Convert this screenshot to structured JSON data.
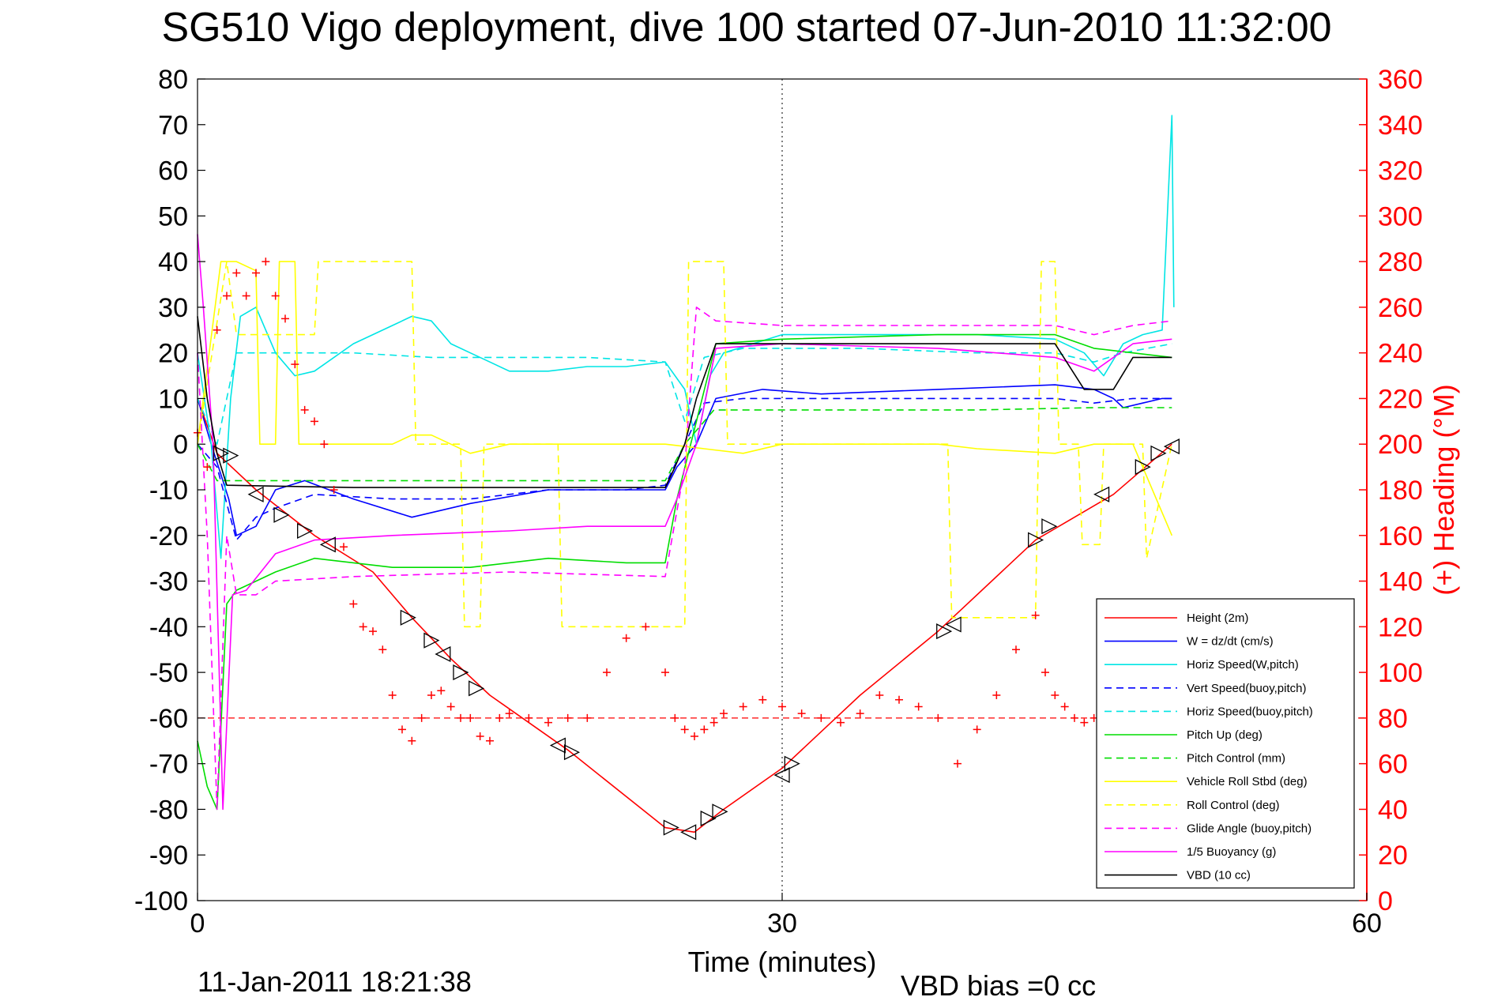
{
  "chart_data": {
    "type": "line",
    "title": "SG510 Vigo deployment, dive 100 started 07-Jun-2010 11:32:00",
    "xlabel": "Time (minutes)",
    "ylabel_right": "(+) Heading (°M)",
    "timestamp": "11-Jan-2011 18:21:38",
    "vbd_bias": "VBD bias =0 cc",
    "xlim": [
      0,
      60
    ],
    "ylim": [
      -100,
      80
    ],
    "ylim_right": [
      0,
      360
    ],
    "x_ticks": [
      "0",
      "30",
      "60"
    ],
    "y_ticks": [
      "80",
      "70",
      "60",
      "50",
      "40",
      "30",
      "20",
      "10",
      "0",
      "-10",
      "-20",
      "-30",
      "-40",
      "-50",
      "-60",
      "-70",
      "-80",
      "-90",
      "-100"
    ],
    "y_ticks_right": [
      "360",
      "340",
      "320",
      "300",
      "280",
      "260",
      "240",
      "220",
      "200",
      "180",
      "160",
      "140",
      "120",
      "100",
      "80",
      "60",
      "40",
      "20",
      "0"
    ],
    "grid": "x only at 30, dotted",
    "legend_position": "bottom-right",
    "colors": {
      "right_axis": "#ff0000",
      "height": "#ff0000",
      "w": "#0000ff",
      "horiz_speed": "#00e5e5",
      "pitch": "#00dd00",
      "roll": "#ffff00",
      "glide": "#ff00ff",
      "buoyancy": "#ff00ff",
      "vbd": "#000000"
    },
    "series": [
      {
        "name": "Height (2m)",
        "color": "#ff0000",
        "dash": "solid",
        "x": [
          0,
          1,
          3,
          6,
          9,
          11,
          13,
          15,
          19,
          24,
          25.5,
          27,
          30,
          34,
          38,
          43,
          47,
          50
        ],
        "values": [
          10,
          -2,
          -10,
          -20,
          -28,
          -38,
          -47,
          -55,
          -67,
          -84,
          -85,
          -80,
          -71,
          -55,
          -41,
          -21,
          -11,
          0
        ]
      },
      {
        "name": "W = dz/dt (cm/s)",
        "color": "#0000ff",
        "dash": "solid",
        "x": [
          0,
          0.7,
          1.3,
          1.6,
          2,
          3,
          4,
          5.5,
          8,
          11,
          14,
          18,
          22,
          24,
          24.6,
          25.6,
          26.6,
          29,
          32,
          38,
          44,
          46,
          47,
          47.5,
          48.5,
          49.5,
          50
        ],
        "values": [
          10,
          0,
          -8,
          -12,
          -20,
          -18,
          -10,
          -8,
          -12,
          -16,
          -13,
          -10,
          -10,
          -10,
          -5,
          0,
          10,
          12,
          11,
          12,
          13,
          12,
          10,
          8,
          9,
          10,
          10
        ]
      },
      {
        "name": "Horiz Speed(W,pitch)",
        "color": "#00e5e5",
        "dash": "solid",
        "x": [
          0,
          0.7,
          1.2,
          1.7,
          2.2,
          3,
          4,
          5,
          6,
          8,
          10,
          11,
          12,
          13,
          14,
          15,
          16,
          18,
          20,
          22,
          24,
          25,
          25.6,
          26.3,
          27,
          30,
          35,
          40,
          44,
          45.5,
          46.5,
          47.5,
          48.5,
          49.5,
          50,
          50.1
        ],
        "values": [
          20,
          0,
          -25,
          10,
          28,
          30,
          20,
          15,
          16,
          22,
          26,
          28,
          27,
          22,
          20,
          18,
          16,
          16,
          17,
          17,
          18,
          12,
          0,
          15,
          20,
          24,
          24,
          24,
          23,
          20,
          15,
          22,
          24,
          25,
          72,
          30
        ]
      },
      {
        "name": "Vert Speed(buoy,pitch)",
        "color": "#0000ff",
        "dash": "dashed",
        "x": [
          0,
          1,
          2,
          3,
          4,
          6,
          10,
          14,
          18,
          22,
          24,
          25,
          26,
          28,
          32,
          38,
          44,
          46,
          48,
          50
        ],
        "values": [
          0,
          -5,
          -21,
          -16,
          -14,
          -11,
          -12,
          -12,
          -10,
          -10,
          -9,
          0,
          9,
          10,
          10,
          10,
          10,
          9,
          10,
          10
        ]
      },
      {
        "name": "Horiz Speed(buoy,pitch)",
        "color": "#00e5e5",
        "dash": "dashed",
        "x": [
          0,
          1,
          2,
          3,
          4,
          8,
          12,
          16,
          20,
          24,
          25,
          26,
          28,
          34,
          40,
          44,
          46,
          47.5,
          50
        ],
        "values": [
          10,
          0,
          20,
          20,
          20,
          20,
          19,
          19,
          19,
          18,
          5,
          19,
          21,
          21,
          20,
          20,
          18,
          20,
          22
        ]
      },
      {
        "name": "Pitch Up (deg)",
        "color": "#00dd00",
        "dash": "solid",
        "x": [
          0,
          0.5,
          1,
          1.5,
          2,
          3,
          4,
          6,
          10,
          14,
          18,
          22,
          24,
          24.6,
          25.6,
          26.6,
          30,
          38,
          44,
          46,
          48,
          50
        ],
        "values": [
          -65,
          -75,
          -80,
          -35,
          -32,
          -30,
          -28,
          -25,
          -27,
          -27,
          -25,
          -26,
          -26,
          -12,
          5,
          22,
          23,
          24,
          24,
          21,
          20,
          19
        ]
      },
      {
        "name": "Pitch Control (mm)",
        "color": "#00dd00",
        "dash": "dashed",
        "x": [
          0,
          1,
          2,
          8,
          16,
          24,
          25,
          26.5,
          32,
          40,
          46,
          50
        ],
        "values": [
          0,
          -8,
          -8,
          -8,
          -8,
          -8,
          0,
          7.5,
          7.5,
          7.5,
          8,
          8
        ]
      },
      {
        "name": "Vehicle Roll Stbd (deg)",
        "color": "#ffff00",
        "dash": "solid",
        "x": [
          0,
          1.2,
          2,
          3,
          3.2,
          4,
          4.2,
          5,
          5.2,
          6,
          8,
          10,
          11,
          12,
          13,
          14,
          16,
          18,
          20,
          24,
          26,
          28,
          30,
          35,
          38,
          40,
          44,
          46,
          48,
          50
        ],
        "values": [
          0,
          40,
          40,
          38,
          0,
          0,
          40,
          40,
          0,
          0,
          0,
          0,
          2,
          2,
          0,
          -2,
          0,
          0,
          0,
          0,
          -1,
          -2,
          0,
          0,
          0,
          -1,
          -2,
          0,
          0,
          -20
        ]
      },
      {
        "name": "Roll Control (deg)",
        "color": "#ffff00",
        "dash": "dashed",
        "x": [
          0,
          1.5,
          2,
          6,
          6.2,
          11,
          11.2,
          13.5,
          13.7,
          14.5,
          14.7,
          18.5,
          18.7,
          25,
          25.2,
          27,
          27.2,
          38.5,
          38.7,
          43,
          43.3,
          44,
          44.2,
          45.2,
          45.4,
          46.3,
          46.5,
          48.5,
          48.7,
          50
        ],
        "values": [
          0,
          40,
          24,
          24,
          40,
          40,
          0,
          0,
          -40,
          -40,
          0,
          0,
          -40,
          -40,
          40,
          40,
          0,
          0,
          -38,
          -38,
          40,
          40,
          0,
          0,
          -22,
          -22,
          0,
          0,
          -25,
          0
        ]
      },
      {
        "name": "Glide Angle (buoy,pitch)",
        "color": "#ff00ff",
        "dash": "dashed",
        "x": [
          0,
          0.5,
          1,
          1.5,
          2,
          3,
          4,
          8,
          16,
          24,
          25,
          25.6,
          26.6,
          30,
          38,
          44,
          46,
          48,
          50
        ],
        "values": [
          20,
          -20,
          -80,
          -20,
          -33,
          -33,
          -30,
          -29,
          -28,
          -29,
          -5,
          30,
          27,
          26,
          26,
          26,
          24,
          26,
          27
        ]
      },
      {
        "name": "1/5 Buoyancy (g)",
        "color": "#ff00ff",
        "dash": "solid",
        "x": [
          0,
          0.3,
          0.8,
          1.3,
          1.8,
          2.5,
          4,
          6,
          10,
          16,
          20,
          24,
          24.6,
          25.6,
          26.6,
          30,
          38,
          44,
          46,
          48,
          50
        ],
        "values": [
          46,
          30,
          0,
          -80,
          -33,
          -32,
          -24,
          -21,
          -20,
          -19,
          -18,
          -18,
          -12,
          0,
          21,
          22,
          21,
          19,
          16,
          22,
          23
        ]
      },
      {
        "name": "VBD (10 cc)",
        "color": "#000000",
        "dash": "solid",
        "x": [
          0,
          0.5,
          1,
          1.5,
          8,
          16,
          24,
          24.5,
          25,
          25.6,
          26.6,
          30,
          38,
          44,
          45.5,
          47,
          48,
          49,
          50
        ],
        "values": [
          28,
          10,
          -2,
          -9,
          -9.5,
          -9.5,
          -9.5,
          -5,
          0,
          10,
          22,
          22,
          22,
          22,
          12,
          12,
          19,
          19,
          19
        ]
      }
    ],
    "heading": {
      "name": "(+) Heading (°M)",
      "axis": "right",
      "x": [
        0,
        0.5,
        1,
        1.5,
        2,
        2.5,
        3,
        3.5,
        4,
        4.5,
        5,
        5.5,
        6,
        6.5,
        7,
        7.5,
        8,
        8.5,
        9,
        9.5,
        10,
        10.5,
        11,
        11.5,
        12,
        12.5,
        13,
        13.5,
        14,
        14.5,
        15,
        15.5,
        16,
        17,
        18,
        19,
        20,
        21,
        22,
        23,
        24,
        24.5,
        25,
        25.5,
        26,
        26.5,
        27,
        28,
        29,
        30,
        31,
        32,
        33,
        34,
        35,
        36,
        37,
        38,
        39,
        40,
        41,
        42,
        43,
        43.5,
        44,
        44.5,
        45,
        45.5,
        46,
        46.5
      ],
      "values": [
        205,
        190,
        250,
        265,
        275,
        265,
        275,
        280,
        265,
        255,
        235,
        215,
        210,
        200,
        180,
        155,
        130,
        120,
        118,
        110,
        90,
        75,
        70,
        80,
        90,
        92,
        85,
        80,
        80,
        72,
        70,
        80,
        82,
        80,
        78,
        80,
        80,
        100,
        115,
        120,
        100,
        80,
        75,
        72,
        75,
        78,
        82,
        85,
        88,
        85,
        82,
        80,
        78,
        82,
        90,
        88,
        85,
        80,
        60,
        75,
        90,
        110,
        125,
        100,
        90,
        85,
        80,
        78,
        80,
        75
      ]
    },
    "markers": {
      "x": [
        1.2,
        1.7,
        3,
        4.3,
        5.5,
        6.7,
        10.8,
        12,
        12.6,
        13.5,
        14.3,
        18.5,
        19.2,
        24.3,
        25.2,
        26.2,
        26.8,
        30,
        30.5,
        38.3,
        38.8,
        43,
        43.7,
        46.4,
        48.5,
        49.3,
        50
      ],
      "values": [
        -2,
        -2.5,
        -11,
        -15.5,
        -19,
        -22,
        -38,
        -43,
        -46,
        -50,
        -53.5,
        -66,
        -67.5,
        -84,
        -85,
        -82,
        -80.5,
        -72.5,
        -70,
        -41,
        -39.5,
        -21,
        -18,
        -11,
        -5,
        -2,
        -0.5
      ]
    }
  },
  "legend": [
    {
      "label": "Height (2m)",
      "color": "#ff0000",
      "dash": "solid"
    },
    {
      "label": "W = dz/dt (cm/s)",
      "color": "#0000ff",
      "dash": "solid"
    },
    {
      "label": "Horiz Speed(W,pitch)",
      "color": "#00e5e5",
      "dash": "solid"
    },
    {
      "label": "Vert Speed(buoy,pitch)",
      "color": "#0000ff",
      "dash": "dashed"
    },
    {
      "label": "Horiz Speed(buoy,pitch)",
      "color": "#00e5e5",
      "dash": "dashed"
    },
    {
      "label": "Pitch Up (deg)",
      "color": "#00dd00",
      "dash": "solid"
    },
    {
      "label": "Pitch Control (mm)",
      "color": "#00dd00",
      "dash": "dashed"
    },
    {
      "label": "Vehicle Roll Stbd (deg)",
      "color": "#ffff00",
      "dash": "solid"
    },
    {
      "label": "Roll Control (deg)",
      "color": "#ffff00",
      "dash": "dashed"
    },
    {
      "label": "Glide Angle (buoy,pitch)",
      "color": "#ff00ff",
      "dash": "dashed"
    },
    {
      "label": "1/5 Buoyancy (g)",
      "color": "#ff00ff",
      "dash": "solid"
    },
    {
      "label": "VBD (10 cc)",
      "color": "#000000",
      "dash": "solid"
    }
  ],
  "reference_line": {
    "y_right": 80,
    "color": "#ff0000",
    "style": "dashed"
  }
}
